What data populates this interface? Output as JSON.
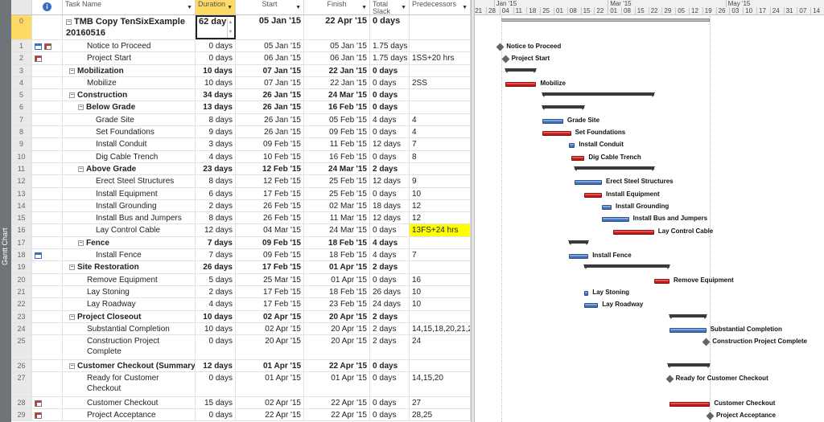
{
  "view_label": "Gantt Chart",
  "columns": {
    "task_name": "Task Name",
    "duration": "Duration",
    "start": "Start",
    "finish": "Finish",
    "total_slack": "Total Slack",
    "predecessors": "Predecessors"
  },
  "colors": {
    "critical": "#d42020",
    "noncritical": "#4f7fc8",
    "summary": "#3a3a3a",
    "selected_header": "#ffd966",
    "highlight": "#ffff00"
  },
  "timescale": {
    "months": [
      {
        "label": "Jan '15",
        "date": "2015-01-01"
      },
      {
        "label": "Mar '15",
        "date": "2015-03-01"
      },
      {
        "label": "May '15",
        "date": "2015-05-01"
      }
    ],
    "weeks": [
      "21",
      "28",
      "04",
      "11",
      "18",
      "25",
      "01",
      "08",
      "15",
      "22",
      "01",
      "08",
      "15",
      "22",
      "29",
      "05",
      "12",
      "19",
      "26",
      "03",
      "10",
      "17",
      "24",
      "31",
      "07",
      "14"
    ]
  },
  "tasks": [
    {
      "id": "0",
      "name": "TMB Copy TenSixExample 20160516",
      "duration": "62 day",
      "start": "05 Jan '15",
      "finish": "22 Apr '15",
      "slack": "0 days",
      "pred": "",
      "level": 0,
      "summary": true,
      "project": true,
      "dbl": true
    },
    {
      "id": "1",
      "name": "Notice to Proceed",
      "duration": "0 days",
      "start": "05 Jan '15",
      "finish": "05 Jan '15",
      "slack": "1.75 days",
      "pred": "",
      "level": 2,
      "milestone": true,
      "icons": [
        "calendar-icon",
        "notes-icon"
      ]
    },
    {
      "id": "2",
      "name": "Project Start",
      "duration": "0 days",
      "start": "06 Jan '15",
      "finish": "06 Jan '15",
      "slack": "1.75 days",
      "pred": "1SS+20 hrs",
      "level": 2,
      "milestone": true,
      "icons": [
        "notes-icon"
      ]
    },
    {
      "id": "3",
      "name": "Mobilization",
      "duration": "10 days",
      "start": "07 Jan '15",
      "finish": "22 Jan '15",
      "slack": "0 days",
      "pred": "",
      "level": 1,
      "summary": true
    },
    {
      "id": "4",
      "name": "Mobilize",
      "duration": "10 days",
      "start": "07 Jan '15",
      "finish": "22 Jan '15",
      "slack": "0 days",
      "pred": "2SS",
      "level": 2,
      "critical": true
    },
    {
      "id": "5",
      "name": "Construction",
      "duration": "34 days",
      "start": "26 Jan '15",
      "finish": "24 Mar '15",
      "slack": "0 days",
      "pred": "",
      "level": 1,
      "summary": true
    },
    {
      "id": "6",
      "name": "Below Grade",
      "duration": "13 days",
      "start": "26 Jan '15",
      "finish": "16 Feb '15",
      "slack": "0 days",
      "pred": "",
      "level": 2,
      "summary": true
    },
    {
      "id": "7",
      "name": "Grade Site",
      "duration": "8 days",
      "start": "26 Jan '15",
      "finish": "05 Feb '15",
      "slack": "4 days",
      "pred": "4",
      "level": 3
    },
    {
      "id": "8",
      "name": "Set Foundations",
      "duration": "9 days",
      "start": "26 Jan '15",
      "finish": "09 Feb '15",
      "slack": "0 days",
      "pred": "4",
      "level": 3,
      "critical": true
    },
    {
      "id": "9",
      "name": "Install Conduit",
      "duration": "3 days",
      "start": "09 Feb '15",
      "finish": "11 Feb '15",
      "slack": "12 days",
      "pred": "7",
      "level": 3
    },
    {
      "id": "10",
      "name": "Dig Cable Trench",
      "duration": "4 days",
      "start": "10 Feb '15",
      "finish": "16 Feb '15",
      "slack": "0 days",
      "pred": "8",
      "level": 3,
      "critical": true
    },
    {
      "id": "11",
      "name": "Above Grade",
      "duration": "23 days",
      "start": "12 Feb '15",
      "finish": "24 Mar '15",
      "slack": "2 days",
      "pred": "",
      "level": 2,
      "summary": true
    },
    {
      "id": "12",
      "name": "Erect Steel Structures",
      "duration": "8 days",
      "start": "12 Feb '15",
      "finish": "25 Feb '15",
      "slack": "12 days",
      "pred": "9",
      "level": 3
    },
    {
      "id": "13",
      "name": "Install Equipment",
      "duration": "6 days",
      "start": "17 Feb '15",
      "finish": "25 Feb '15",
      "slack": "0 days",
      "pred": "10",
      "level": 3,
      "critical": true
    },
    {
      "id": "14",
      "name": "Install Grounding",
      "duration": "2 days",
      "start": "26 Feb '15",
      "finish": "02 Mar '15",
      "slack": "18 days",
      "pred": "12",
      "level": 3
    },
    {
      "id": "15",
      "name": "Install Bus and Jumpers",
      "duration": "8 days",
      "start": "26 Feb '15",
      "finish": "11 Mar '15",
      "slack": "12 days",
      "pred": "12",
      "level": 3
    },
    {
      "id": "16",
      "name": "Lay Control Cable",
      "duration": "12 days",
      "start": "04 Mar '15",
      "finish": "24 Mar '15",
      "slack": "0 days",
      "pred": "13FS+24 hrs",
      "level": 3,
      "critical": true,
      "highlight_pred": true
    },
    {
      "id": "17",
      "name": "Fence",
      "duration": "7 days",
      "start": "09 Feb '15",
      "finish": "18 Feb '15",
      "slack": "4 days",
      "pred": "",
      "level": 2,
      "summary": true
    },
    {
      "id": "18",
      "name": "Install Fence",
      "duration": "7 days",
      "start": "09 Feb '15",
      "finish": "18 Feb '15",
      "slack": "4 days",
      "pred": "7",
      "level": 3,
      "icons": [
        "calendar-icon"
      ]
    },
    {
      "id": "19",
      "name": "Site Restoration",
      "duration": "26 days",
      "start": "17 Feb '15",
      "finish": "01 Apr '15",
      "slack": "2 days",
      "pred": "",
      "level": 1,
      "summary": true
    },
    {
      "id": "20",
      "name": "Remove Equipment",
      "duration": "5 days",
      "start": "25 Mar '15",
      "finish": "01 Apr '15",
      "slack": "0 days",
      "pred": "16",
      "level": 2,
      "critical": true
    },
    {
      "id": "21",
      "name": "Lay Stoning",
      "duration": "2 days",
      "start": "17 Feb '15",
      "finish": "18 Feb '15",
      "slack": "26 days",
      "pred": "10",
      "level": 2
    },
    {
      "id": "22",
      "name": "Lay Roadway",
      "duration": "4 days",
      "start": "17 Feb '15",
      "finish": "23 Feb '15",
      "slack": "24 days",
      "pred": "10",
      "level": 2
    },
    {
      "id": "23",
      "name": "Project Closeout",
      "duration": "10 days",
      "start": "02 Apr '15",
      "finish": "20 Apr '15",
      "slack": "2 days",
      "pred": "",
      "level": 1,
      "summary": true
    },
    {
      "id": "24",
      "name": "Substantial Completion",
      "duration": "10 days",
      "start": "02 Apr '15",
      "finish": "20 Apr '15",
      "slack": "2 days",
      "pred": "14,15,18,20,21,2",
      "level": 2
    },
    {
      "id": "25",
      "name": "Construction Project Complete",
      "duration": "0 days",
      "start": "20 Apr '15",
      "finish": "20 Apr '15",
      "slack": "2 days",
      "pred": "24",
      "level": 2,
      "milestone": true,
      "dbl": true
    },
    {
      "id": "26",
      "name": "Customer Checkout (Summary)",
      "duration": "12 days",
      "start": "01 Apr '15",
      "finish": "22 Apr '15",
      "slack": "0 days",
      "pred": "",
      "level": 1,
      "summary": true
    },
    {
      "id": "27",
      "name": "Ready for Customer Checkout",
      "duration": "0 days",
      "start": "01 Apr '15",
      "finish": "01 Apr '15",
      "slack": "0 days",
      "pred": "14,15,20",
      "level": 2,
      "milestone": true,
      "dbl": true
    },
    {
      "id": "28",
      "name": "Customer Checkout",
      "duration": "15 days",
      "start": "02 Apr '15",
      "finish": "22 Apr '15",
      "slack": "0 days",
      "pred": "27",
      "level": 2,
      "critical": true,
      "icons": [
        "notes-icon"
      ]
    },
    {
      "id": "29",
      "name": "Project Acceptance",
      "duration": "0 days",
      "start": "22 Apr '15",
      "finish": "22 Apr '15",
      "slack": "0 days",
      "pred": "28,25",
      "level": 2,
      "milestone": true,
      "icons": [
        "notes-icon"
      ]
    }
  ]
}
